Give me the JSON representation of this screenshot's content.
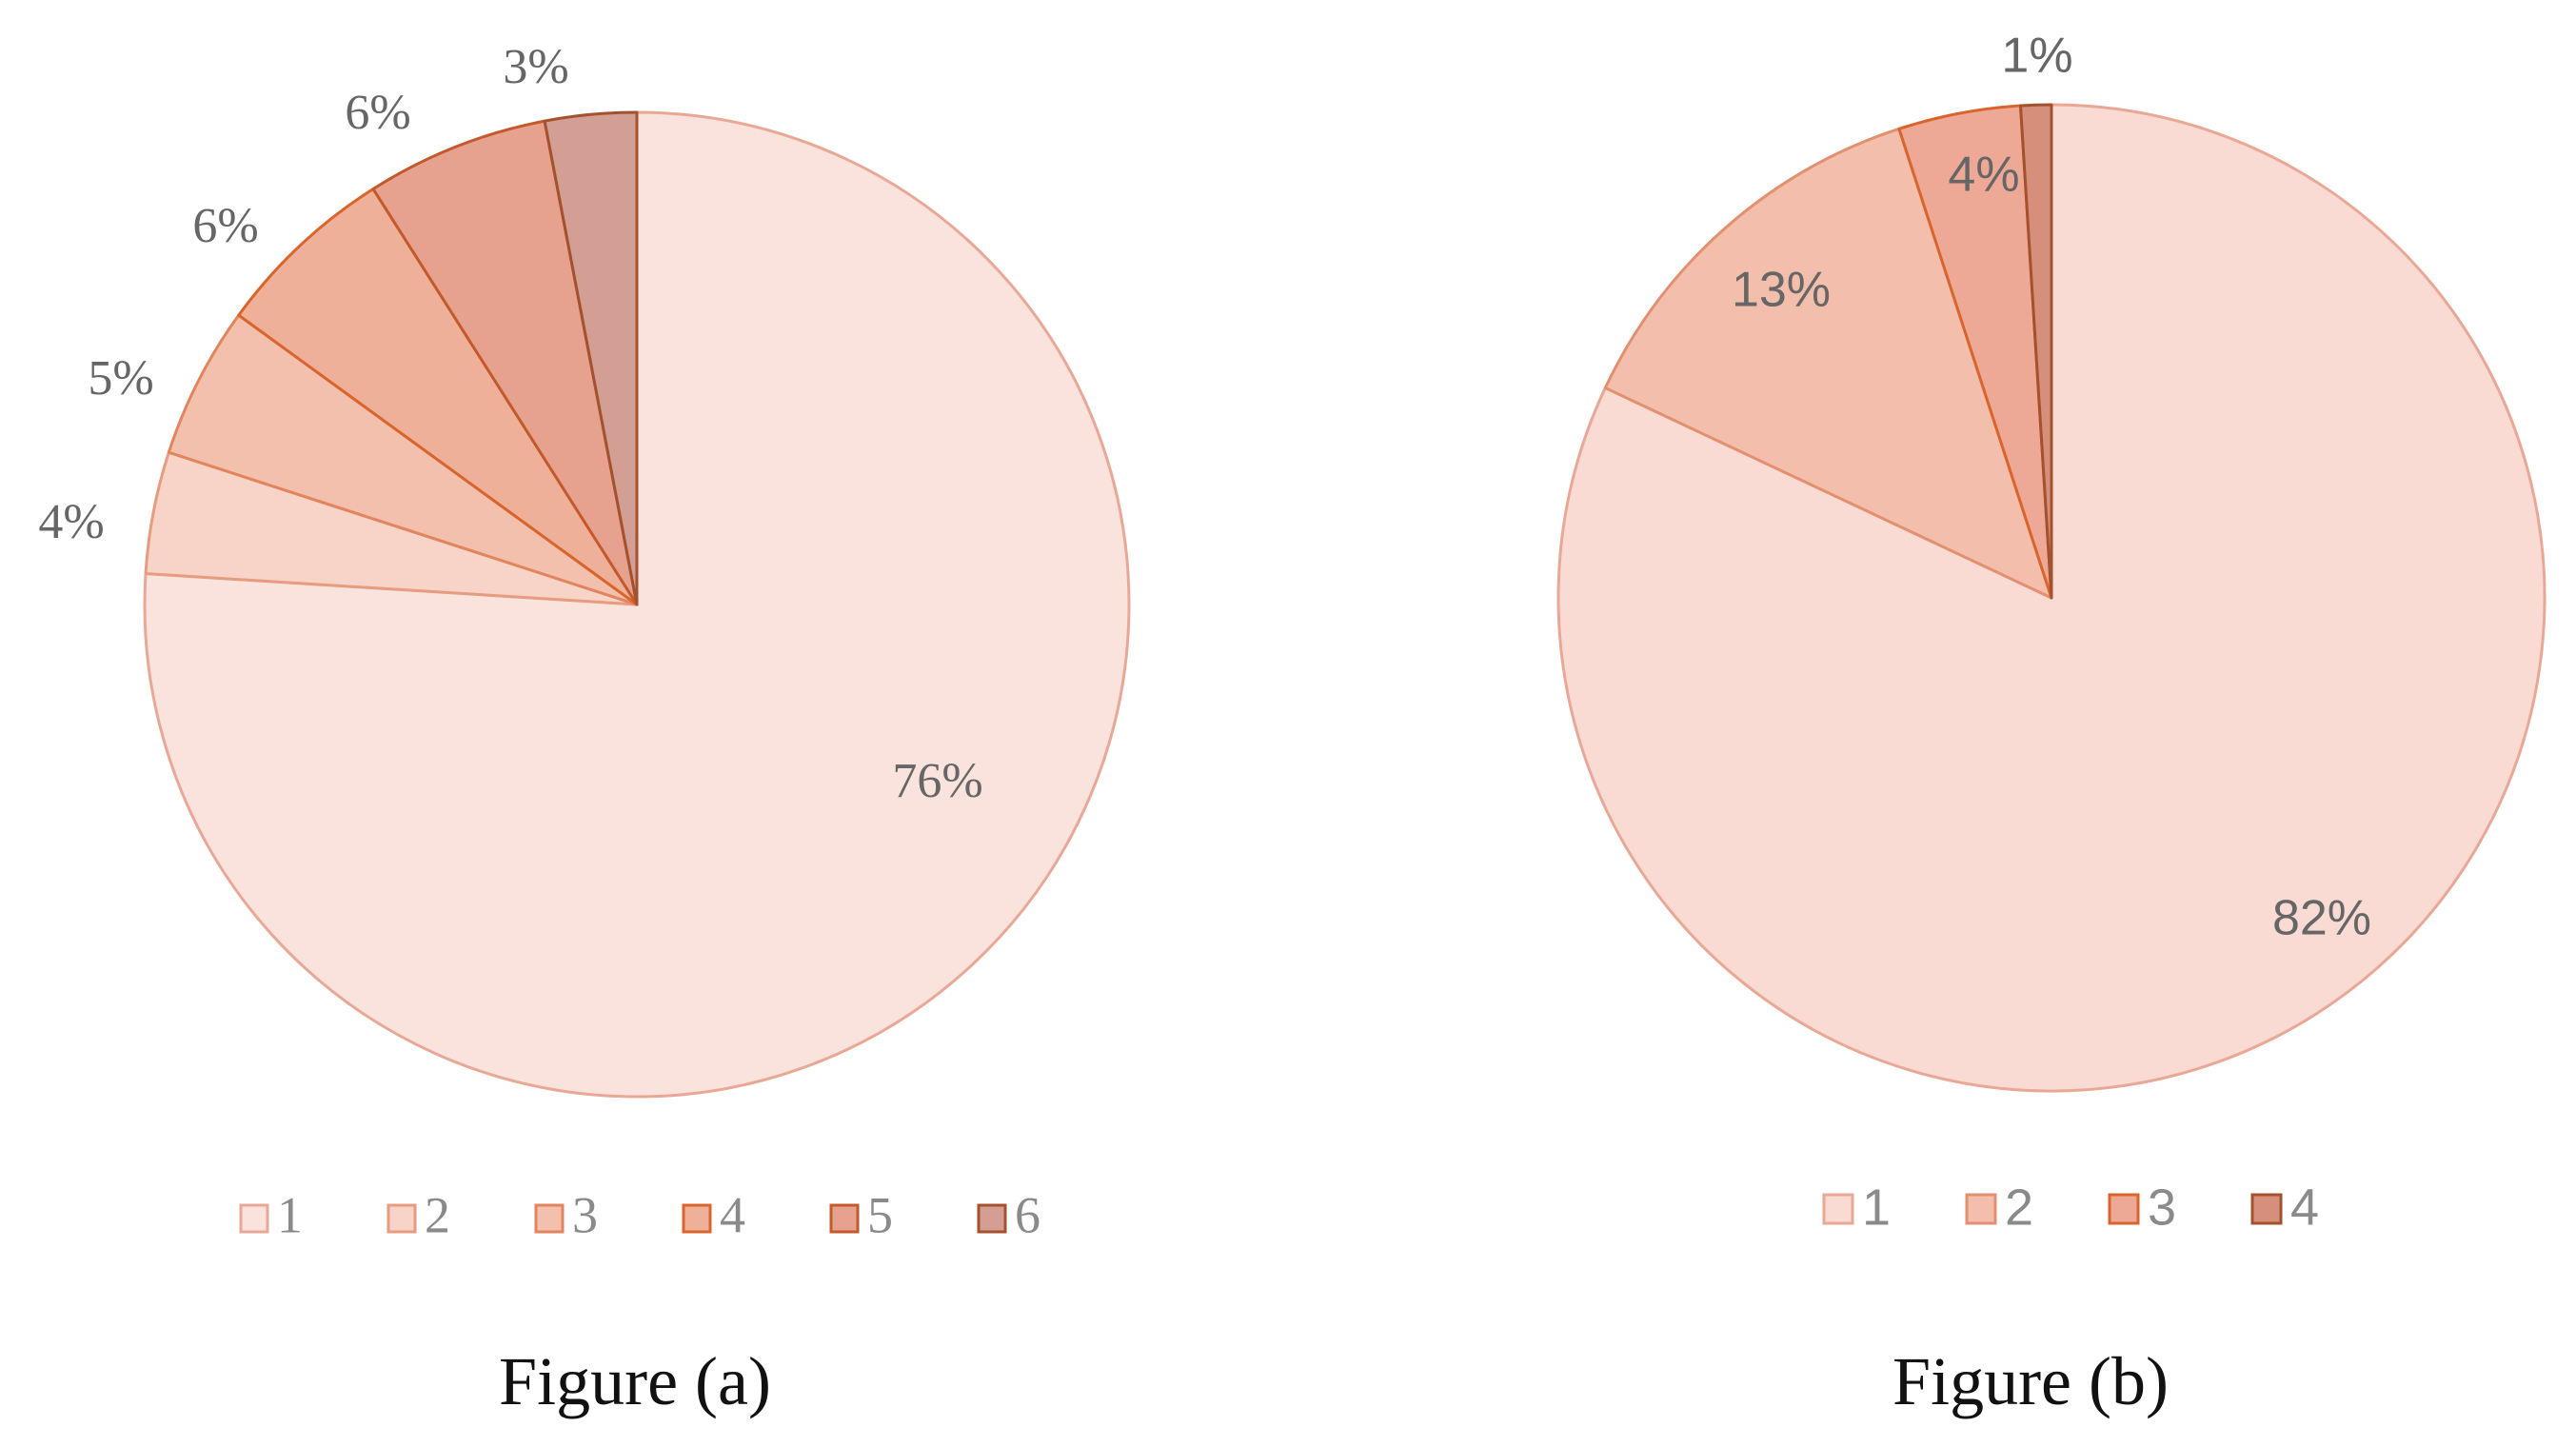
{
  "chart_data": [
    {
      "type": "pie",
      "caption": "Figure (a)",
      "slices": [
        {
          "label": "1",
          "value": 76,
          "display": "76%",
          "fill": "#FBE3DD",
          "stroke": "#E9A896"
        },
        {
          "label": "2",
          "value": 4,
          "display": "4%",
          "fill": "#F8D3C8",
          "stroke": "#E79C80"
        },
        {
          "label": "3",
          "value": 5,
          "display": "5%",
          "fill": "#F4C0AE",
          "stroke": "#E2845D"
        },
        {
          "label": "4",
          "value": 6,
          "display": "6%",
          "fill": "#EFB09A",
          "stroke": "#D9652D"
        },
        {
          "label": "5",
          "value": 6,
          "display": "6%",
          "fill": "#E6A18F",
          "stroke": "#C45A2C"
        },
        {
          "label": "6",
          "value": 3,
          "display": "3%",
          "fill": "#D39E93",
          "stroke": "#A4512E"
        }
      ],
      "legend_position": "bottom"
    },
    {
      "type": "pie",
      "caption": "Figure (b)",
      "slices": [
        {
          "label": "1",
          "value": 82,
          "display": "82%",
          "fill": "#F9DBD3",
          "stroke": "#E9A896"
        },
        {
          "label": "2",
          "value": 13,
          "display": "13%",
          "fill": "#F4BEAC",
          "stroke": "#E2906F"
        },
        {
          "label": "3",
          "value": 4,
          "display": "4%",
          "fill": "#EDA996",
          "stroke": "#D9652D"
        },
        {
          "label": "4",
          "value": 1,
          "display": "1%",
          "fill": "#D58F7B",
          "stroke": "#A4512E"
        }
      ],
      "legend_position": "bottom"
    }
  ]
}
